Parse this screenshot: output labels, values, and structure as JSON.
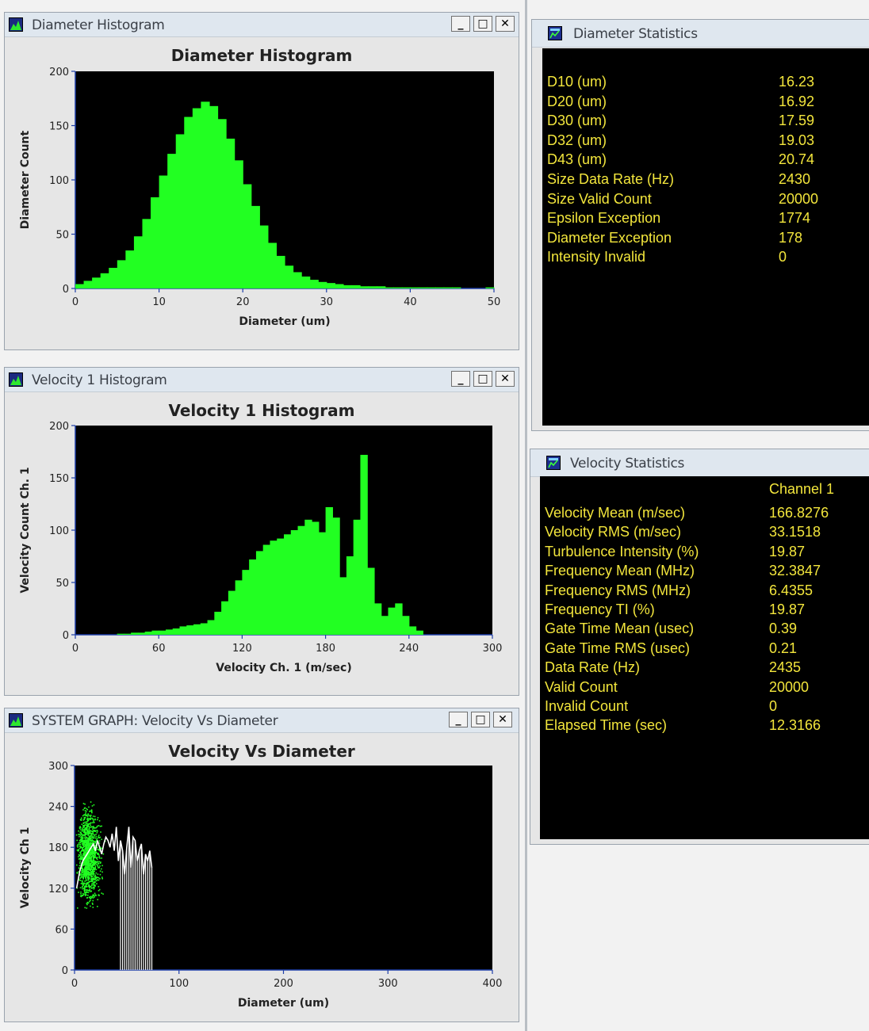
{
  "colors": {
    "plot_bg": "#000000",
    "bars": "#22ff22",
    "stat_text": "#f3e63c",
    "titlebar": "#dfe7ef"
  },
  "windows": {
    "diameter_histogram": {
      "title": "Diameter Histogram",
      "plot_title": "Diameter Histogram"
    },
    "velocity_histogram": {
      "title": "Velocity 1 Histogram",
      "plot_title": "Velocity 1 Histogram"
    },
    "system_graph": {
      "title": "SYSTEM GRAPH: Velocity Vs Diameter",
      "plot_title": "Velocity Vs Diameter"
    },
    "diameter_statistics": {
      "title": "Diameter Statistics"
    },
    "velocity_statistics": {
      "title": "Velocity Statistics",
      "column_header": "Channel 1"
    }
  },
  "window_buttons": {
    "minimize": "_",
    "maximize": "□",
    "close": "✕"
  },
  "icons": {
    "plot_window": "chart-window-icon",
    "stats_window": "stats-window-icon"
  },
  "diameter_stats": [
    {
      "label": "D10 (um)",
      "value": "16.23"
    },
    {
      "label": "D20 (um)",
      "value": "16.92"
    },
    {
      "label": "D30 (um)",
      "value": "17.59"
    },
    {
      "label": "D32 (um)",
      "value": "19.03"
    },
    {
      "label": "D43 (um)",
      "value": "20.74"
    },
    {
      "label": "Size Data Rate (Hz)",
      "value": "2430"
    },
    {
      "label": "Size Valid Count",
      "value": "20000"
    },
    {
      "label": "Epsilon Exception",
      "value": "1774"
    },
    {
      "label": "Diameter Exception",
      "value": "178"
    },
    {
      "label": "Intensity Invalid",
      "value": "0"
    }
  ],
  "velocity_stats": [
    {
      "label": "Velocity Mean (m/sec)",
      "value": "166.8276"
    },
    {
      "label": "Velocity RMS (m/sec)",
      "value": "33.1518"
    },
    {
      "label": "Turbulence Intensity (%)",
      "value": "19.87"
    },
    {
      "label": "Frequency Mean (MHz)",
      "value": "32.3847"
    },
    {
      "label": "Frequency RMS (MHz)",
      "value": "6.4355"
    },
    {
      "label": "Frequency TI (%)",
      "value": "19.87"
    },
    {
      "label": "Gate Time Mean (usec)",
      "value": "0.39"
    },
    {
      "label": "Gate Time RMS (usec)",
      "value": "0.21"
    },
    {
      "label": "Data Rate (Hz)",
      "value": "2435"
    },
    {
      "label": "Valid Count",
      "value": "20000"
    },
    {
      "label": "Invalid Count",
      "value": "0"
    },
    {
      "label": "Elapsed Time (sec)",
      "value": "12.3166"
    }
  ],
  "chart_data": [
    {
      "type": "bar",
      "title": "Diameter Histogram",
      "xlabel": "Diameter  (um)",
      "ylabel": "Diameter Count",
      "xlim": [
        0,
        50
      ],
      "ylim": [
        0,
        200
      ],
      "xticks": [
        "0",
        "10",
        "20",
        "30",
        "40",
        "50"
      ],
      "yticks": [
        "0",
        "50",
        "100",
        "150",
        "200"
      ],
      "x": [
        1,
        2,
        3,
        4,
        5,
        6,
        7,
        8,
        9,
        10,
        11,
        12,
        13,
        14,
        15,
        16,
        17,
        18,
        19,
        20,
        21,
        22,
        23,
        24,
        25,
        26,
        27,
        28,
        29,
        30,
        31,
        32,
        33,
        34,
        35,
        36,
        37,
        38,
        39,
        40,
        41,
        42,
        43,
        44,
        45,
        46,
        47,
        48,
        49,
        50
      ],
      "values": [
        4,
        7,
        10,
        14,
        19,
        26,
        35,
        48,
        64,
        84,
        104,
        124,
        142,
        158,
        166,
        172,
        168,
        156,
        138,
        118,
        96,
        76,
        58,
        42,
        30,
        21,
        15,
        11,
        8,
        6,
        5,
        4,
        3,
        3,
        2,
        2,
        2,
        1,
        1,
        1,
        1,
        1,
        1,
        1,
        1,
        1,
        0,
        0,
        0,
        1
      ]
    },
    {
      "type": "bar",
      "title": "Velocity 1 Histogram",
      "xlabel": "Velocity  Ch. 1 (m/sec)",
      "ylabel": "Velocity Count Ch. 1",
      "xlim": [
        0,
        300
      ],
      "ylim": [
        0,
        200
      ],
      "xticks": [
        "0",
        "60",
        "120",
        "180",
        "240",
        "300"
      ],
      "yticks": [
        "0",
        "50",
        "100",
        "150",
        "200"
      ],
      "x": [
        35,
        40,
        45,
        50,
        55,
        60,
        65,
        70,
        75,
        80,
        85,
        90,
        95,
        100,
        105,
        110,
        115,
        120,
        125,
        130,
        135,
        140,
        145,
        150,
        155,
        160,
        165,
        170,
        175,
        180,
        185,
        190,
        195,
        200,
        205,
        210,
        215,
        220,
        225,
        230,
        235,
        240,
        245,
        250
      ],
      "values": [
        1,
        1,
        2,
        2,
        3,
        4,
        4,
        5,
        6,
        8,
        9,
        10,
        11,
        14,
        22,
        32,
        42,
        52,
        62,
        72,
        80,
        86,
        90,
        92,
        96,
        100,
        104,
        110,
        108,
        98,
        122,
        112,
        55,
        75,
        110,
        172,
        64,
        30,
        18,
        26,
        30,
        18,
        8,
        4
      ]
    },
    {
      "type": "scatter",
      "title": "Velocity Vs Diameter",
      "xlabel": "Diameter (um)",
      "ylabel": "Velocity Ch 1",
      "xlim": [
        0,
        400
      ],
      "ylim": [
        0,
        300
      ],
      "xticks": [
        "0",
        "100",
        "200",
        "300",
        "400"
      ],
      "yticks": [
        "0",
        "60",
        "120",
        "180",
        "240",
        "300"
      ],
      "series": [
        {
          "x": [
            2,
            5,
            8,
            10,
            12,
            14,
            16,
            18,
            20,
            22,
            24,
            26,
            28,
            30,
            32,
            34,
            36,
            38,
            40,
            42,
            44,
            46,
            48,
            50,
            52,
            54,
            56,
            58,
            60,
            62,
            64,
            66,
            68,
            70,
            72,
            74
          ],
          "y": [
            120,
            145,
            160,
            165,
            170,
            175,
            180,
            185,
            175,
            190,
            180,
            170,
            185,
            195,
            190,
            180,
            200,
            175,
            210,
            160,
            190,
            175,
            140,
            180,
            210,
            150,
            195,
            190,
            160,
            175,
            185,
            140,
            170,
            160,
            175,
            150
          ]
        }
      ],
      "cluster": {
        "x_range": [
          0,
          32
        ],
        "y_range": [
          80,
          255
        ]
      }
    }
  ]
}
